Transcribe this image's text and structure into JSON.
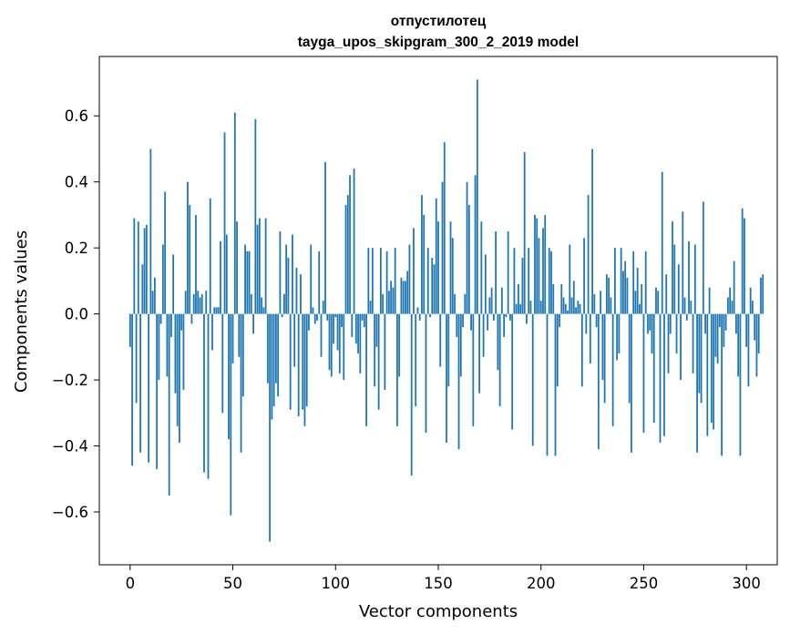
{
  "chart_data": {
    "type": "bar",
    "title": "отпустилотец",
    "subtitle": "tayga_upos_skipgram_300_2_2019 model",
    "xlabel": "Vector components",
    "ylabel": "Components values",
    "xlim": [
      -15,
      315
    ],
    "ylim": [
      -0.76,
      0.78
    ],
    "xticks": [
      0,
      50,
      100,
      150,
      200,
      250,
      300
    ],
    "xtick_labels": [
      "0",
      "50",
      "100",
      "150",
      "200",
      "250",
      "300"
    ],
    "yticks": [
      -0.6,
      -0.4,
      -0.2,
      0.0,
      0.2,
      0.4,
      0.6
    ],
    "ytick_labels": [
      "−0.6",
      "−0.4",
      "−0.2",
      "0.0",
      "0.2",
      "0.4",
      "0.6"
    ],
    "grid": false,
    "bar_color": "#1f77b4",
    "series": [
      {
        "values": [
          -0.1,
          -0.46,
          0.29,
          -0.27,
          0.28,
          -0.42,
          0.15,
          0.26,
          0.27,
          -0.45,
          0.5,
          0.07,
          0.11,
          -0.47,
          -0.2,
          -0.03,
          0.21,
          0.37,
          -0.19,
          -0.55,
          -0.07,
          0.18,
          -0.24,
          -0.34,
          -0.39,
          -0.05,
          -0.23,
          0.07,
          0.4,
          0.33,
          -0.03,
          0.06,
          0.3,
          0.07,
          0.05,
          0.06,
          -0.48,
          0.07,
          -0.5,
          0.35,
          -0.11,
          0.02,
          0.02,
          0.02,
          0.22,
          -0.3,
          0.55,
          0.24,
          -0.38,
          -0.61,
          -0.15,
          0.61,
          0.28,
          -0.13,
          -0.42,
          -0.25,
          0.21,
          0.19,
          0.19,
          0.06,
          -0.06,
          0.59,
          0.27,
          0.29,
          0.05,
          0.02,
          0.29,
          -0.21,
          -0.69,
          -0.32,
          -0.28,
          -0.21,
          -0.25,
          0.25,
          -0.01,
          0.06,
          0.21,
          0.17,
          -0.29,
          0.24,
          -0.16,
          0.14,
          -0.31,
          0.12,
          -0.29,
          -0.34,
          -0.28,
          -0.05,
          0.21,
          0.02,
          -0.03,
          -0.02,
          0.19,
          -0.13,
          0.04,
          0.46,
          -0.02,
          -0.17,
          -0.19,
          -0.09,
          -0.01,
          -0.11,
          -0.18,
          -0.04,
          -0.2,
          0.33,
          0.36,
          0.42,
          -0.07,
          0.44,
          -0.09,
          -0.12,
          -0.18,
          -0.02,
          -0.04,
          -0.34,
          0.2,
          0.04,
          0.2,
          -0.22,
          -0.1,
          -0.29,
          0.2,
          0.06,
          -0.23,
          0.19,
          0.07,
          0.1,
          0.08,
          0.2,
          -0.34,
          -0.19,
          0.11,
          0.1,
          0.1,
          0.13,
          0.21,
          -0.49,
          0.26,
          -0.28,
          0.02,
          -0.02,
          0.36,
          0.3,
          -0.36,
          0.2,
          -0.01,
          0.17,
          0.15,
          0.35,
          0.28,
          -0.16,
          0.4,
          0.52,
          -0.39,
          -0.22,
          0.28,
          0.23,
          0.06,
          -0.07,
          -0.41,
          -0.19,
          -0.04,
          0.06,
          0.4,
          0.33,
          -0.05,
          -0.34,
          0.42,
          0.71,
          -0.24,
          0.28,
          -0.13,
          0.18,
          -0.05,
          0.05,
          0.08,
          -0.02,
          0.25,
          -0.17,
          -0.28,
          0.08,
          -0.07,
          -0.01,
          0.25,
          -0.02,
          -0.35,
          0.2,
          0.03,
          0.09,
          0.03,
          0.17,
          0.49,
          -0.03,
          0.2,
          0.04,
          -0.4,
          0.3,
          0.29,
          0.23,
          0.04,
          0.26,
          0.3,
          -0.43,
          0.2,
          0.19,
          0.09,
          -0.43,
          -0.22,
          -0.04,
          0.09,
          0.05,
          0.03,
          0.01,
          0.21,
          0.05,
          0.1,
          0.02,
          0.04,
          0.03,
          -0.22,
          0.23,
          -0.06,
          0.36,
          -0.15,
          0.5,
          0.06,
          -0.04,
          -0.41,
          0.07,
          -0.2,
          -0.27,
          0.12,
          0.11,
          0.05,
          -0.34,
          0.2,
          -0.14,
          -0.12,
          0.2,
          0.13,
          0.16,
          0.11,
          -0.27,
          -0.42,
          0.19,
          0.07,
          0.14,
          0.03,
          0.09,
          -0.36,
          0.19,
          -0.06,
          -0.05,
          -0.12,
          -0.33,
          0.08,
          0.07,
          -0.39,
          0.43,
          -0.37,
          0.12,
          -0.18,
          -0.06,
          0.28,
          0.21,
          -0.12,
          0.15,
          -0.2,
          0.31,
          0.05,
          -0.02,
          0.22,
          0.04,
          -0.18,
          0.21,
          -0.42,
          -0.24,
          -0.27,
          0.34,
          -0.06,
          -0.37,
          0.08,
          -0.33,
          -0.35,
          -0.13,
          -0.15,
          -0.04,
          -0.43,
          -0.1,
          -0.05,
          0.05,
          0.08,
          0.04,
          0.16,
          -0.06,
          -0.19,
          -0.43,
          0.32,
          0.29,
          -0.1,
          -0.22,
          0.08,
          0.04,
          -0.08,
          -0.19,
          -0.12,
          0.11,
          0.12
        ]
      }
    ]
  }
}
